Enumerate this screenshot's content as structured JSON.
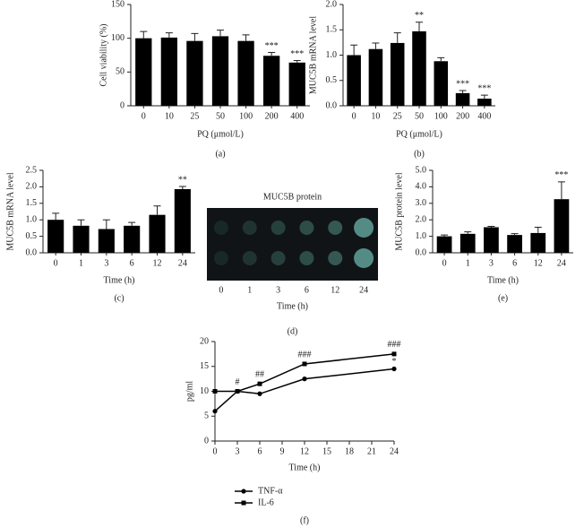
{
  "chart_data": [
    {
      "type": "bar",
      "panel_label": "(a)",
      "y_label": "Cell viability (%)",
      "x_label": "PQ (μmol/L)",
      "categories": [
        "0",
        "10",
        "25",
        "50",
        "100",
        "200",
        "400"
      ],
      "values": [
        100,
        101,
        96,
        103,
        96,
        74,
        64
      ],
      "errors": [
        10,
        7,
        11,
        9,
        9,
        5,
        3
      ],
      "annotations": [
        null,
        null,
        null,
        null,
        null,
        "***",
        "***"
      ],
      "color": "#000000",
      "ylim": [
        0,
        150
      ],
      "yticks": [
        0,
        50,
        100,
        150
      ]
    },
    {
      "type": "bar",
      "panel_label": "(b)",
      "y_label": "MUC5B mRNA level",
      "x_label": "PQ (μmol/L)",
      "categories": [
        "0",
        "10",
        "25",
        "50",
        "100",
        "200",
        "400"
      ],
      "values": [
        1.0,
        1.12,
        1.24,
        1.47,
        0.88,
        0.25,
        0.14
      ],
      "errors": [
        0.2,
        0.12,
        0.2,
        0.18,
        0.07,
        0.05,
        0.07
      ],
      "annotations": [
        null,
        null,
        null,
        "**",
        null,
        "***",
        "***"
      ],
      "color": "#000000",
      "ylim": [
        0,
        2
      ],
      "yticks": [
        {
          "value": 0,
          "label": "0.0"
        },
        0.5,
        {
          "value": 1,
          "label": "1.0"
        },
        1.5,
        {
          "value": 2,
          "label": "2.0"
        }
      ]
    },
    {
      "type": "bar",
      "panel_label": "(c)",
      "y_label": "MUC5B mRNA level",
      "x_label": "Time (h)",
      "categories": [
        "0",
        "1",
        "3",
        "6",
        "12",
        "24"
      ],
      "values": [
        1.0,
        0.82,
        0.72,
        0.82,
        1.15,
        1.93
      ],
      "errors": [
        0.2,
        0.18,
        0.28,
        0.1,
        0.27,
        0.08
      ],
      "annotations": [
        null,
        null,
        null,
        null,
        null,
        "**"
      ],
      "color": "#000000",
      "ylim": [
        0,
        2.5
      ],
      "yticks": [
        {
          "value": 0,
          "label": "0.0"
        },
        0.5,
        {
          "value": 1,
          "label": "1.0"
        },
        1.5,
        {
          "value": 2,
          "label": "2.0"
        },
        2.5
      ]
    },
    {
      "type": "blot",
      "panel_label": "(d)",
      "title": "MUC5B protein",
      "x_label": "Time (h)",
      "categories": [
        "0",
        "1",
        "3",
        "6",
        "12",
        "24"
      ]
    },
    {
      "type": "bar",
      "panel_label": "(e)",
      "y_label": "MUC5B protein level",
      "x_label": "Time (h)",
      "categories": [
        "0",
        "1",
        "3",
        "6",
        "12",
        "24"
      ],
      "values": [
        1.0,
        1.15,
        1.55,
        1.08,
        1.2,
        3.25
      ],
      "errors": [
        0.08,
        0.12,
        0.05,
        0.08,
        0.35,
        1.05
      ],
      "annotations": [
        null,
        null,
        null,
        null,
        null,
        "***"
      ],
      "color": "#000000",
      "ylim": [
        0,
        5
      ],
      "yticks": [
        {
          "value": 0,
          "label": "0.0"
        },
        {
          "value": 1,
          "label": "1.0"
        },
        {
          "value": 2,
          "label": "2.0"
        },
        {
          "value": 3,
          "label": "3.0"
        },
        {
          "value": 4,
          "label": "4.0"
        },
        {
          "value": 5,
          "label": "5.0"
        }
      ]
    },
    {
      "type": "line",
      "panel_label": "(f)",
      "y_label": "pg/ml",
      "x_label": "Time (h)",
      "x": [
        0,
        3,
        6,
        12,
        24
      ],
      "series": [
        {
          "name": "TNF-α",
          "color": "#000000",
          "marker": "circle",
          "values": [
            6,
            10,
            9.5,
            12.5,
            14.5
          ],
          "annotations": [
            null,
            null,
            null,
            null,
            "*"
          ]
        },
        {
          "name": "IL-6",
          "color": "#000000",
          "marker": "square",
          "values": [
            10,
            10,
            11.5,
            15.5,
            17.5
          ],
          "annotations": [
            null,
            "#",
            "##",
            "###",
            "###"
          ]
        }
      ],
      "xlim": [
        0,
        24
      ],
      "xticks": [
        0,
        3,
        6,
        9,
        12,
        15,
        18,
        21,
        24
      ],
      "ylim": [
        0,
        20
      ],
      "yticks": [
        0,
        5,
        10,
        15,
        20
      ]
    }
  ]
}
